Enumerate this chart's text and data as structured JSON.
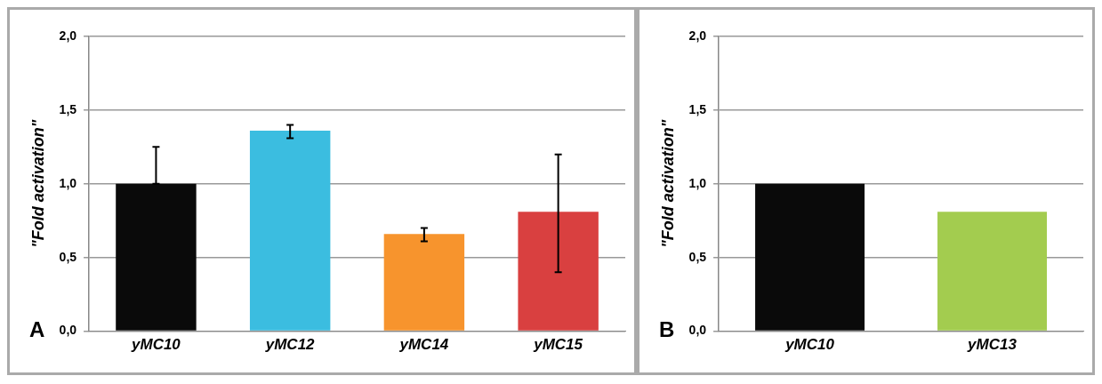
{
  "chart_data": [
    {
      "type": "bar",
      "ylabel": "\"Fold activation\"",
      "annotations": [
        "A"
      ],
      "categories": [
        "yMC10",
        "yMC12",
        "yMC14",
        "yMC15"
      ],
      "values": [
        1.0,
        1.36,
        0.66,
        0.81
      ],
      "colors": [
        "#0a0a0a",
        "#3bbde0",
        "#f7942d",
        "#d94040"
      ],
      "errors": [
        [
          1.0,
          1.25
        ],
        [
          1.31,
          1.4
        ],
        [
          0.61,
          0.7
        ],
        [
          0.4,
          1.2
        ]
      ],
      "ylim": [
        0,
        2
      ],
      "yticks": [
        {
          "value": 0,
          "label": "0,0"
        },
        {
          "value": 0.5,
          "label": "0,5"
        },
        {
          "value": 1,
          "label": "1,0"
        },
        {
          "value": 1.5,
          "label": "1,5"
        },
        {
          "value": 2,
          "label": "2,0"
        }
      ],
      "grid": "y",
      "legend": false
    },
    {
      "type": "bar",
      "ylabel": "\"Fold activation\"",
      "annotations": [
        "B"
      ],
      "categories": [
        "yMC10",
        "yMC13"
      ],
      "values": [
        1.0,
        0.81
      ],
      "colors": [
        "#0a0a0a",
        "#a3cc4f"
      ],
      "ylim": [
        0,
        2
      ],
      "yticks": [
        {
          "value": 0,
          "label": "0,0"
        },
        {
          "value": 0.5,
          "label": "0,5"
        },
        {
          "value": 1,
          "label": "1,0"
        },
        {
          "value": 1.5,
          "label": "1,5"
        },
        {
          "value": 2,
          "label": "2,0"
        }
      ],
      "grid": "y",
      "legend": false
    }
  ]
}
